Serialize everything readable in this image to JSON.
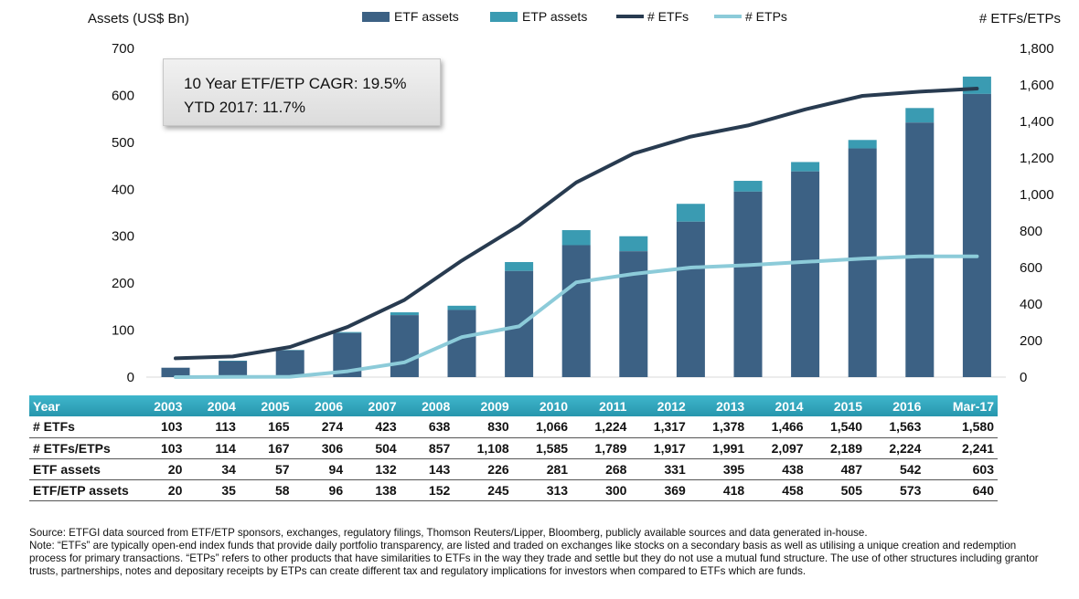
{
  "chart_data": {
    "type": "bar",
    "categories": [
      "2003",
      "2004",
      "2005",
      "2006",
      "2007",
      "2008",
      "2009",
      "2010",
      "2011",
      "2012",
      "2013",
      "2014",
      "2015",
      "2016",
      "Mar-17"
    ],
    "series": [
      {
        "name": "ETF assets",
        "kind": "bar",
        "axis": "left",
        "color": "#3c6184",
        "values": [
          20,
          34,
          57,
          94,
          132,
          143,
          226,
          281,
          268,
          331,
          395,
          438,
          487,
          542,
          603
        ]
      },
      {
        "name": "ETP assets",
        "kind": "bar",
        "axis": "left",
        "color": "#3a9bb2",
        "values": [
          20,
          35,
          58,
          96,
          138,
          152,
          245,
          313,
          300,
          369,
          418,
          458,
          505,
          573,
          640
        ]
      },
      {
        "name": "# ETFs",
        "kind": "line",
        "axis": "right",
        "color": "#283b50",
        "values": [
          103,
          113,
          165,
          274,
          423,
          638,
          830,
          1066,
          1224,
          1317,
          1378,
          1466,
          1540,
          1563,
          1580
        ]
      },
      {
        "name": "# ETPs",
        "kind": "line",
        "axis": "right",
        "color": "#8ccbd9",
        "values": [
          0,
          1,
          2,
          32,
          81,
          219,
          278,
          519,
          565,
          600,
          613,
          631,
          649,
          661,
          661
        ]
      }
    ],
    "ylabel": "Assets (US$ Bn)",
    "y2label": "# ETFs/ETPs",
    "ylim": [
      0,
      700
    ],
    "y2lim": [
      0,
      1800
    ],
    "yticks": [
      "0",
      "100",
      "200",
      "300",
      "400",
      "500",
      "600",
      "700"
    ],
    "y2ticks": [
      "0",
      "200",
      "400",
      "600",
      "800",
      "1,000",
      "1,200",
      "1,400",
      "1,600",
      "1,800"
    ],
    "legend": [
      "ETF assets",
      "ETP assets",
      "# ETFs",
      "# ETPs"
    ],
    "annotations": [
      "10 Year ETF/ETP CAGR: 19.5%",
      "YTD 2017: 11.7%"
    ],
    "table": {
      "header": [
        "Year",
        "2003",
        "2004",
        "2005",
        "2006",
        "2007",
        "2008",
        "2009",
        "2010",
        "2011",
        "2012",
        "2013",
        "2014",
        "2015",
        "2016",
        "Mar-17"
      ],
      "rows": [
        [
          "# ETFs",
          "103",
          "113",
          "165",
          "274",
          "423",
          "638",
          "830",
          "1,066",
          "1,224",
          "1,317",
          "1,378",
          "1,466",
          "1,540",
          "1,563",
          "1,580"
        ],
        [
          "# ETFs/ETPs",
          "103",
          "114",
          "167",
          "306",
          "504",
          "857",
          "1,108",
          "1,585",
          "1,789",
          "1,917",
          "1,991",
          "2,097",
          "2,189",
          "2,224",
          "2,241"
        ],
        [
          "ETF assets",
          "20",
          "34",
          "57",
          "94",
          "132",
          "143",
          "226",
          "281",
          "268",
          "331",
          "395",
          "438",
          "487",
          "542",
          "603"
        ],
        [
          "ETF/ETP assets",
          "20",
          "35",
          "58",
          "96",
          "138",
          "152",
          "245",
          "313",
          "300",
          "369",
          "418",
          "458",
          "505",
          "573",
          "640"
        ]
      ]
    }
  },
  "footnote": {
    "source": "Source: ETFGI data sourced from ETF/ETP sponsors, exchanges, regulatory filings, Thomson Reuters/Lipper, Bloomberg, publicly available sources and data generated in-house.",
    "note": "Note: “ETFs” are typically open-end index funds that provide daily portfolio transparency, are listed and traded on exchanges like stocks on a secondary basis as well as utilising a unique creation and redemption process for primary transactions. “ETPs” refers to other products that have similarities to ETFs in the way they trade and settle but they do not use a mutual fund structure. The use of other structures including grantor trusts, partnerships, notes and depositary receipts by ETPs can create different tax and regulatory implications for investors when compared to ETFs which are funds."
  }
}
